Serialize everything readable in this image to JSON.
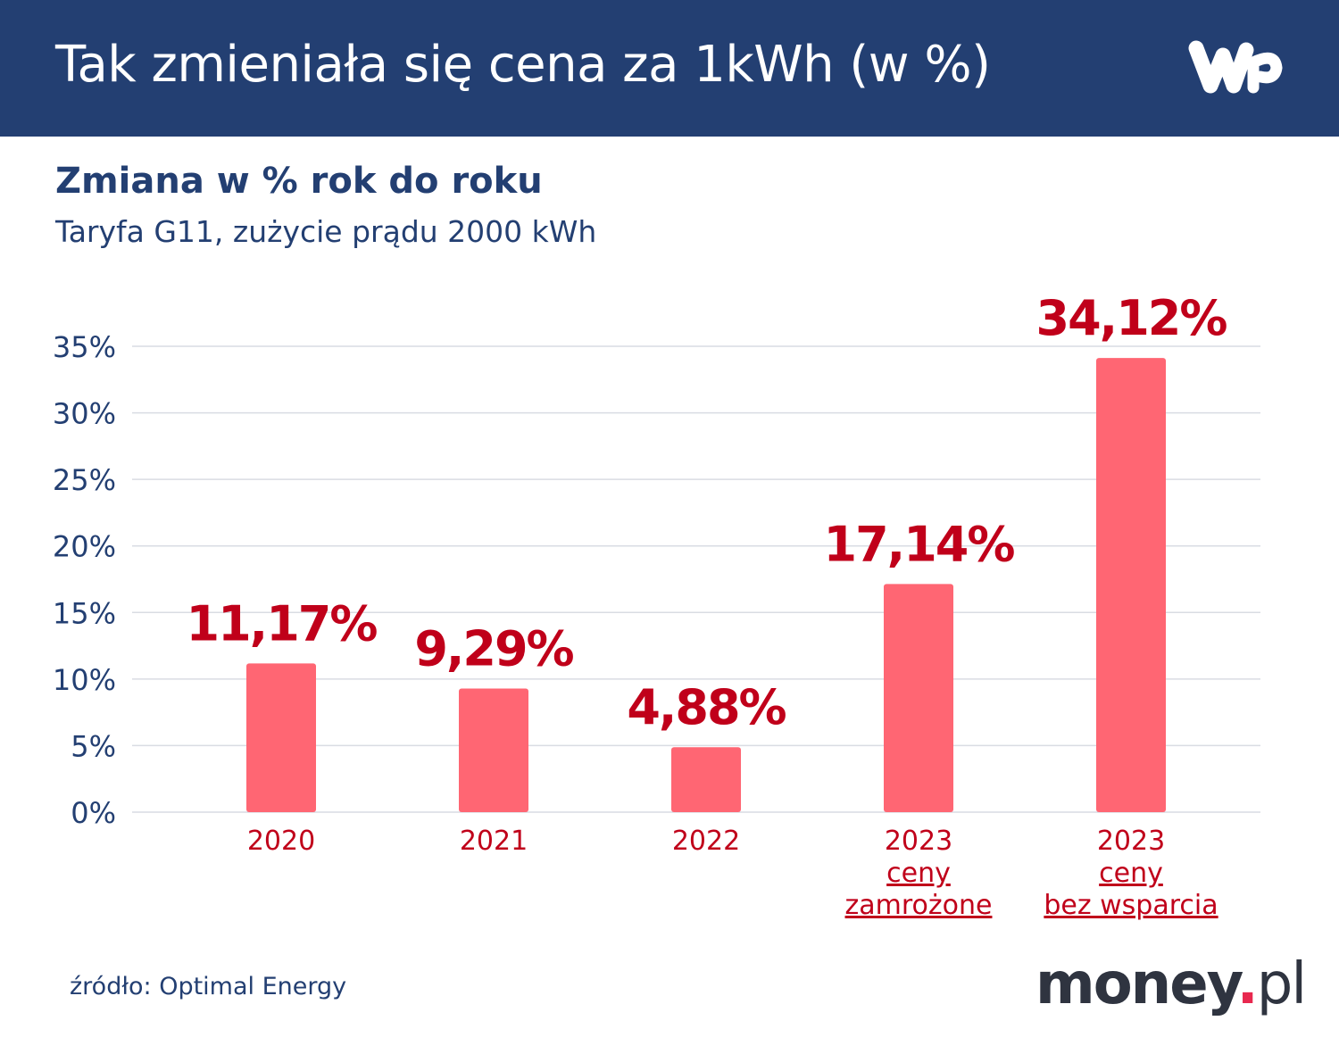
{
  "header": {
    "title": "Tak zmieniała się cena za 1kWh (w %)",
    "logo": "WP"
  },
  "source": "źródło: Optimal Energy",
  "brand": {
    "name": "money",
    "dot": ".",
    "suffix": "pl"
  },
  "colors": {
    "header_bg": "#233f72",
    "bar": "#ff6673",
    "label": "#c0001a",
    "text": "#233f72"
  },
  "chart_data": {
    "type": "bar",
    "title": "Zmiana w % rok do roku",
    "subtitle": "Taryfa G11, zużycie prądu 2000 kWh",
    "categories": [
      [
        "2020"
      ],
      [
        "2021"
      ],
      [
        "2022"
      ],
      [
        "2023",
        "ceny",
        "zamrożone"
      ],
      [
        "2023",
        "ceny",
        "bez wsparcia"
      ]
    ],
    "values": [
      11.17,
      9.29,
      4.88,
      17.14,
      34.12
    ],
    "data_labels": [
      "11,17%",
      "9,29%",
      "4,88%",
      "17,14%",
      "34,12%"
    ],
    "yticks": [
      "0%",
      "5%",
      "10%",
      "15%",
      "20%",
      "25%",
      "30%",
      "35%"
    ],
    "ylim": [
      0,
      35
    ],
    "grid": true,
    "xlabel": "",
    "ylabel": ""
  }
}
